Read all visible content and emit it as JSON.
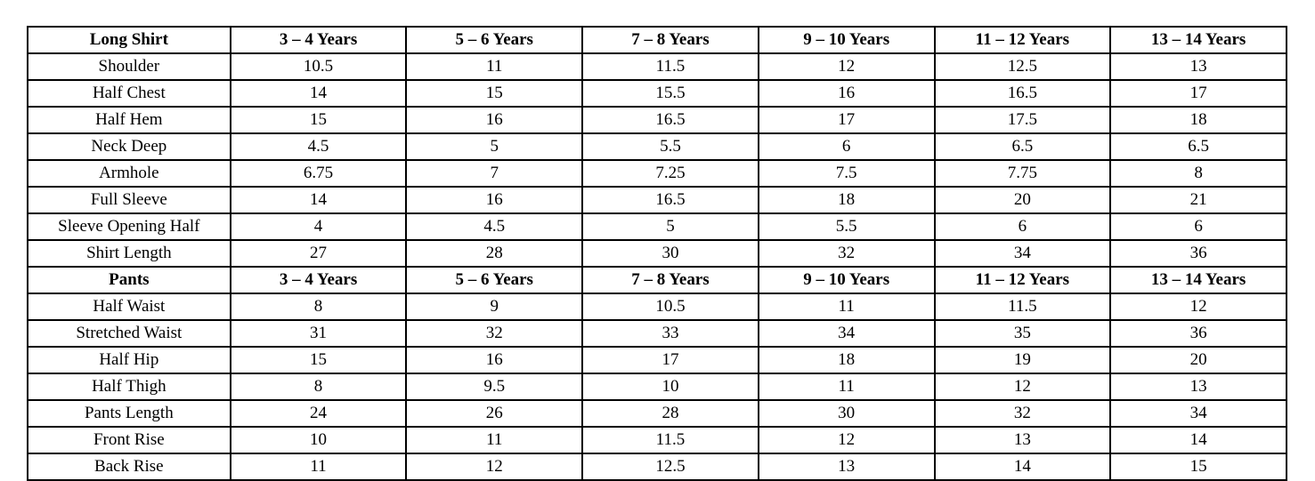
{
  "table": {
    "sections": [
      {
        "header": {
          "label": "Long Shirt",
          "columns": [
            "3 – 4 Years",
            "5 – 6 Years",
            "7 – 8 Years",
            "9 – 10 Years",
            "11 – 12 Years",
            "13 – 14 Years"
          ]
        },
        "rows": [
          {
            "label": "Shoulder",
            "values": [
              "10.5",
              "11",
              "11.5",
              "12",
              "12.5",
              "13"
            ]
          },
          {
            "label": "Half Chest",
            "values": [
              "14",
              "15",
              "15.5",
              "16",
              "16.5",
              "17"
            ]
          },
          {
            "label": "Half Hem",
            "values": [
              "15",
              "16",
              "16.5",
              "17",
              "17.5",
              "18"
            ]
          },
          {
            "label": "Neck Deep",
            "values": [
              "4.5",
              "5",
              "5.5",
              "6",
              "6.5",
              "6.5"
            ]
          },
          {
            "label": "Armhole",
            "values": [
              "6.75",
              "7",
              "7.25",
              "7.5",
              "7.75",
              "8"
            ]
          },
          {
            "label": "Full Sleeve",
            "values": [
              "14",
              "16",
              "16.5",
              "18",
              "20",
              "21"
            ]
          },
          {
            "label": "Sleeve Opening Half",
            "values": [
              "4",
              "4.5",
              "5",
              "5.5",
              "6",
              "6"
            ]
          },
          {
            "label": "Shirt Length",
            "values": [
              "27",
              "28",
              "30",
              "32",
              "34",
              "36"
            ]
          }
        ]
      },
      {
        "header": {
          "label": "Pants",
          "columns": [
            "3 – 4 Years",
            "5 – 6 Years",
            "7 – 8 Years",
            "9 – 10 Years",
            "11 – 12 Years",
            "13 – 14 Years"
          ]
        },
        "rows": [
          {
            "label": "Half Waist",
            "values": [
              "8",
              "9",
              "10.5",
              "11",
              "11.5",
              "12"
            ]
          },
          {
            "label": "Stretched Waist",
            "values": [
              "31",
              "32",
              "33",
              "34",
              "35",
              "36"
            ]
          },
          {
            "label": "Half Hip",
            "values": [
              "15",
              "16",
              "17",
              "18",
              "19",
              "20"
            ]
          },
          {
            "label": "Half Thigh",
            "values": [
              "8",
              "9.5",
              "10",
              "11",
              "12",
              "13"
            ]
          },
          {
            "label": "Pants Length",
            "values": [
              "24",
              "26",
              "28",
              "30",
              "32",
              "34"
            ]
          },
          {
            "label": "Front Rise",
            "values": [
              "10",
              "11",
              "11.5",
              "12",
              "13",
              "14"
            ]
          },
          {
            "label": "Back Rise",
            "values": [
              "11",
              "12",
              "12.5",
              "13",
              "14",
              "15"
            ]
          }
        ]
      }
    ]
  }
}
